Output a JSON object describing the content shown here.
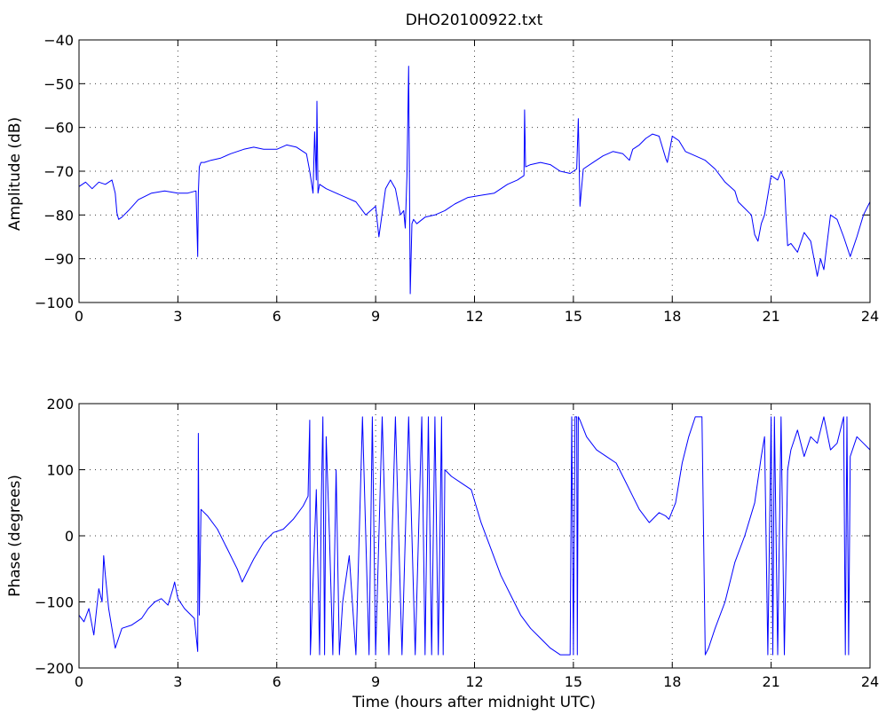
{
  "figure_title": "DHO20100922.txt",
  "colors": {
    "trace": "#0000ff",
    "axes": "#000000",
    "background": "#ffffff"
  },
  "chart_data": [
    {
      "type": "line",
      "title": "DHO20100922.txt",
      "xlabel": "",
      "ylabel": "Amplitude (dB)",
      "xlim": [
        0,
        24
      ],
      "ylim": [
        -100,
        -40
      ],
      "grid": true,
      "xticks": [
        0,
        3,
        6,
        9,
        12,
        15,
        18,
        21,
        24
      ],
      "yticks": [
        -100,
        -90,
        -80,
        -70,
        -60,
        -50,
        -40
      ],
      "xtick_labels": [
        "0",
        "3",
        "6",
        "9",
        "12",
        "15",
        "18",
        "21",
        "24"
      ],
      "ytick_labels": [
        "−100",
        "−90",
        "−80",
        "−70",
        "−60",
        "−50",
        "−40"
      ],
      "series": [
        {
          "color": "#0000ff",
          "x": [
            0,
            0.2,
            0.4,
            0.6,
            0.8,
            1.0,
            1.1,
            1.15,
            1.2,
            1.3,
            1.5,
            1.8,
            2.2,
            2.6,
            3.0,
            3.3,
            3.55,
            3.6,
            3.62,
            3.65,
            3.7,
            3.8,
            4.0,
            4.3,
            4.6,
            5.0,
            5.3,
            5.6,
            6.0,
            6.3,
            6.6,
            6.9,
            7.0,
            7.1,
            7.15,
            7.2,
            7.22,
            7.25,
            7.3,
            7.5,
            7.8,
            8.1,
            8.4,
            8.7,
            9.0,
            9.1,
            9.3,
            9.45,
            9.6,
            9.75,
            9.85,
            9.9,
            9.95,
            10.0,
            10.05,
            10.1,
            10.15,
            10.25,
            10.5,
            10.8,
            11.1,
            11.4,
            11.8,
            12.2,
            12.6,
            13.0,
            13.3,
            13.5,
            13.52,
            13.55,
            13.7,
            14.0,
            14.3,
            14.6,
            14.9,
            15.1,
            15.15,
            15.2,
            15.3,
            15.6,
            15.9,
            16.2,
            16.5,
            16.7,
            16.8,
            17.0,
            17.2,
            17.4,
            17.6,
            17.8,
            17.85,
            18.0,
            18.2,
            18.4,
            18.7,
            19.0,
            19.3,
            19.6,
            19.9,
            20.0,
            20.2,
            20.4,
            20.5,
            20.6,
            20.7,
            20.8,
            21.0,
            21.2,
            21.3,
            21.4,
            21.45,
            21.5,
            21.6,
            21.8,
            22.0,
            22.2,
            22.4,
            22.5,
            22.6,
            22.8,
            23.0,
            23.2,
            23.4,
            23.6,
            23.8,
            24.0
          ],
          "y": [
            -73.5,
            -72.5,
            -74,
            -72.5,
            -73,
            -72,
            -75,
            -79.5,
            -81,
            -80.5,
            -79,
            -76.5,
            -75,
            -74.5,
            -75,
            -75,
            -74.5,
            -89.5,
            -75,
            -69,
            -68,
            -68,
            -67.5,
            -67,
            -66,
            -65,
            -64.5,
            -65,
            -65,
            -64,
            -64.5,
            -66,
            -70,
            -75,
            -61,
            -72,
            -54,
            -75,
            -73,
            -74,
            -75,
            -76,
            -77,
            -80,
            -78,
            -85,
            -74,
            -72,
            -74,
            -80,
            -79,
            -83,
            -71,
            -46,
            -98,
            -82,
            -81,
            -82,
            -80.5,
            -80,
            -79,
            -77.5,
            -76,
            -75.5,
            -75,
            -73,
            -72,
            -71,
            -56,
            -69,
            -68.5,
            -68,
            -68.5,
            -70,
            -70.5,
            -69.5,
            -58,
            -78,
            -69.5,
            -68,
            -66.5,
            -65.5,
            -66,
            -67.5,
            -65,
            -64,
            -62.5,
            -61.5,
            -62,
            -67,
            -68,
            -62,
            -63,
            -65.5,
            -66.5,
            -67.5,
            -69.5,
            -72.5,
            -74.5,
            -77,
            -78.5,
            -80,
            -84.5,
            -86,
            -82,
            -80,
            -71,
            -72,
            -70,
            -72,
            -80,
            -87,
            -86.5,
            -88.5,
            -84,
            -86,
            -94,
            -90,
            -92.5,
            -80,
            -81,
            -85,
            -89.5,
            -85,
            -80,
            -77
          ]
        }
      ]
    },
    {
      "type": "line",
      "title": "",
      "xlabel": "Time (hours after midnight UTC)",
      "ylabel": "Phase (degrees)",
      "xlim": [
        0,
        24
      ],
      "ylim": [
        -200,
        200
      ],
      "grid": true,
      "xticks": [
        0,
        3,
        6,
        9,
        12,
        15,
        18,
        21,
        24
      ],
      "yticks": [
        -200,
        -100,
        0,
        100,
        200
      ],
      "xtick_labels": [
        "0",
        "3",
        "6",
        "9",
        "12",
        "15",
        "18",
        "21",
        "24"
      ],
      "ytick_labels": [
        "−200",
        "−100",
        "0",
        "100",
        "200"
      ],
      "series": [
        {
          "color": "#0000ff",
          "x": [
            0,
            0.15,
            0.3,
            0.45,
            0.6,
            0.7,
            0.75,
            0.8,
            0.9,
            1.0,
            1.1,
            1.3,
            1.6,
            1.9,
            2.1,
            2.3,
            2.5,
            2.7,
            2.85,
            2.9,
            3.0,
            3.2,
            3.5,
            3.6,
            3.62,
            3.65,
            3.7,
            3.9,
            4.2,
            4.5,
            4.8,
            4.95,
            5.1,
            5.3,
            5.6,
            5.9,
            6.2,
            6.5,
            6.8,
            6.95,
            7.0,
            7.02,
            7.1,
            7.2,
            7.3,
            7.35,
            7.4,
            7.45,
            7.5,
            7.6,
            7.7,
            7.8,
            7.9,
            8.0,
            8.2,
            8.4,
            8.6,
            8.8,
            8.9,
            9.0,
            9.2,
            9.4,
            9.6,
            9.8,
            10.0,
            10.2,
            10.4,
            10.5,
            10.6,
            10.7,
            10.8,
            10.9,
            11.0,
            11.05,
            11.1,
            11.3,
            11.6,
            11.9,
            12.2,
            12.5,
            12.8,
            13.1,
            13.4,
            13.7,
            14.0,
            14.3,
            14.6,
            14.9,
            14.95,
            15.0,
            15.05,
            15.1,
            15.12,
            15.15,
            15.2,
            15.4,
            15.7,
            16.0,
            16.3,
            16.6,
            16.8,
            17.0,
            17.3,
            17.6,
            17.8,
            17.9,
            18.1,
            18.3,
            18.5,
            18.7,
            18.9,
            19.0,
            19.05,
            19.1,
            19.3,
            19.6,
            19.9,
            20.2,
            20.5,
            20.7,
            20.8,
            20.9,
            21.0,
            21.05,
            21.1,
            21.2,
            21.3,
            21.4,
            21.5,
            21.6,
            21.8,
            22.0,
            22.2,
            22.4,
            22.6,
            22.8,
            23.0,
            23.2,
            23.25,
            23.3,
            23.35,
            23.4,
            23.6,
            23.8,
            24.0
          ],
          "y": [
            -120,
            -130,
            -110,
            -150,
            -80,
            -100,
            -30,
            -60,
            -110,
            -140,
            -170,
            -140,
            -135,
            -125,
            -110,
            -100,
            -95,
            -105,
            -80,
            -70,
            -95,
            -110,
            -125,
            -175,
            155,
            -120,
            40,
            30,
            10,
            -20,
            -50,
            -70,
            -55,
            -35,
            -10,
            5,
            10,
            25,
            45,
            60,
            175,
            -180,
            -70,
            70,
            -180,
            50,
            180,
            -180,
            150,
            0,
            -180,
            100,
            -180,
            -100,
            -30,
            -180,
            180,
            -180,
            180,
            -180,
            180,
            -180,
            180,
            -180,
            180,
            -180,
            180,
            -180,
            180,
            -180,
            180,
            -180,
            180,
            -180,
            100,
            90,
            80,
            70,
            20,
            -20,
            -60,
            -90,
            -120,
            -140,
            -155,
            -170,
            -180,
            -180,
            180,
            -180,
            180,
            180,
            -180,
            180,
            175,
            150,
            130,
            120,
            110,
            80,
            60,
            40,
            20,
            35,
            30,
            25,
            50,
            110,
            150,
            180,
            180,
            -180,
            -175,
            -170,
            -140,
            -100,
            -40,
            0,
            50,
            120,
            150,
            -180,
            180,
            -180,
            180,
            -180,
            180,
            -180,
            100,
            130,
            160,
            120,
            150,
            140,
            180,
            130,
            140,
            180,
            -180,
            180,
            -180,
            120,
            150,
            140,
            130
          ]
        }
      ]
    }
  ]
}
